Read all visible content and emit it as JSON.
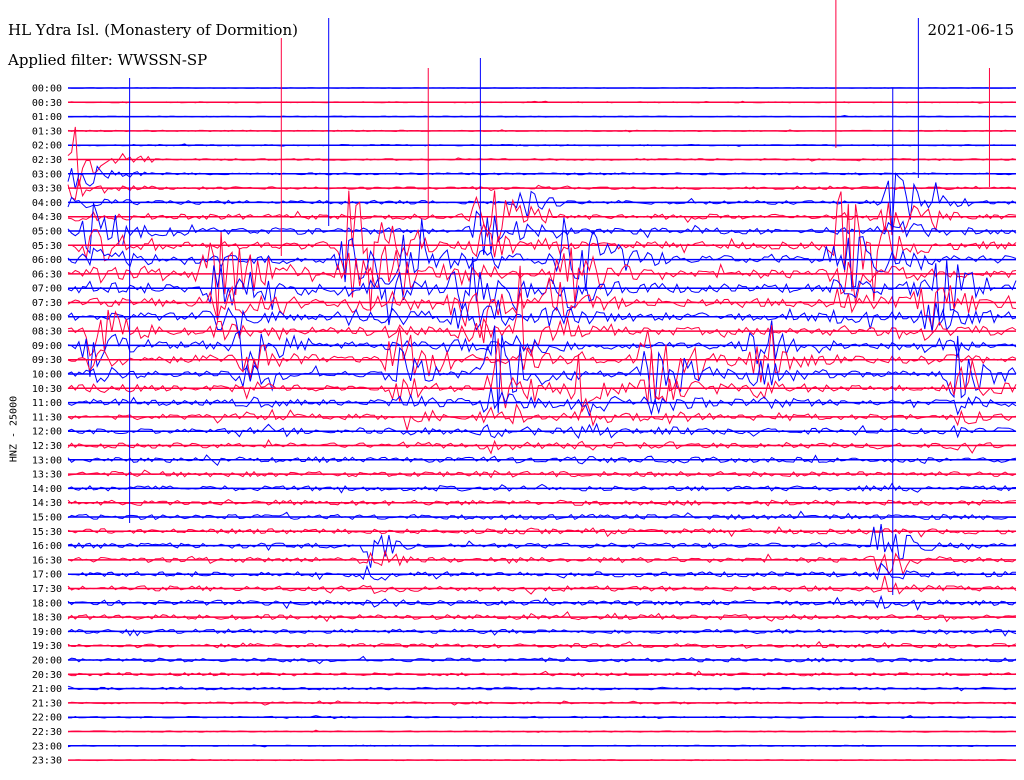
{
  "header": {
    "station": "HL Ydra Isl. (Monastery of Dormition)",
    "filter": "Applied filter: WWSSN-SP",
    "date": "2021-06-15"
  },
  "chart_data": {
    "type": "line",
    "title": "HL Ydra Isl. (Monastery of Dormition)",
    "subtitle": "Applied filter: WWSSN-SP",
    "date": "2021-06-15",
    "ylabel": "HNZ - 25000",
    "xlabel": "",
    "grid": false,
    "legend": "none",
    "colors": [
      "#0000ff",
      "#ff0040"
    ],
    "row_labels": [
      "00:00",
      "00:30",
      "01:00",
      "01:30",
      "02:00",
      "02:30",
      "03:00",
      "03:30",
      "04:00",
      "04:30",
      "05:00",
      "05:30",
      "06:00",
      "06:30",
      "07:00",
      "07:30",
      "08:00",
      "08:30",
      "09:00",
      "09:30",
      "10:00",
      "10:30",
      "11:00",
      "11:30",
      "12:00",
      "12:30",
      "13:00",
      "13:30",
      "14:00",
      "14:30",
      "15:00",
      "15:30",
      "16:00",
      "16:30",
      "17:00",
      "17:30",
      "18:00",
      "18:30",
      "19:00",
      "19:30",
      "20:00",
      "20:30",
      "21:00",
      "21:30",
      "22:00",
      "22:30",
      "23:00",
      "23:30"
    ],
    "row_noise": [
      0.3,
      0.5,
      0.5,
      0.6,
      0.7,
      0.9,
      1.0,
      1.4,
      2.0,
      2.6,
      3.2,
      3.8,
      4.2,
      4.4,
      4.4,
      4.2,
      4.0,
      3.8,
      3.6,
      3.4,
      3.2,
      3.0,
      2.9,
      2.8,
      2.7,
      2.6,
      2.6,
      2.6,
      2.6,
      2.6,
      2.6,
      2.6,
      2.6,
      2.6,
      2.6,
      2.6,
      2.6,
      2.5,
      2.3,
      2.1,
      1.9,
      1.6,
      1.3,
      1.0,
      0.8,
      0.6,
      0.5,
      0.5
    ],
    "events": [
      {
        "row": 5,
        "x": 0.01,
        "amp": 34,
        "dur": 0.08,
        "span": 4
      },
      {
        "row": 10,
        "x": 0.03,
        "amp": 28,
        "dur": 0.1,
        "span": 4
      },
      {
        "row": 12,
        "x": 0.34,
        "amp": 50,
        "dur": 0.1,
        "span": 6
      },
      {
        "row": 13,
        "x": 0.16,
        "amp": 58,
        "dur": 0.1,
        "span": 6
      },
      {
        "row": 11,
        "x": 0.3,
        "amp": 62,
        "dur": 0.09,
        "span": 6
      },
      {
        "row": 14,
        "x": 0.42,
        "amp": 40,
        "dur": 0.12,
        "span": 6
      },
      {
        "row": 9,
        "x": 0.44,
        "amp": 42,
        "dur": 0.08,
        "span": 4
      },
      {
        "row": 12,
        "x": 0.53,
        "amp": 50,
        "dur": 0.1,
        "span": 6
      },
      {
        "row": 11,
        "x": 0.82,
        "amp": 60,
        "dur": 0.09,
        "span": 6
      },
      {
        "row": 8,
        "x": 0.87,
        "amp": 36,
        "dur": 0.08,
        "span": 5
      },
      {
        "row": 14,
        "x": 0.91,
        "amp": 44,
        "dur": 0.1,
        "span": 6
      },
      {
        "row": 17,
        "x": 0.03,
        "amp": 36,
        "dur": 0.07,
        "span": 5
      },
      {
        "row": 18,
        "x": 0.19,
        "amp": 38,
        "dur": 0.08,
        "span": 6
      },
      {
        "row": 19,
        "x": 0.35,
        "amp": 42,
        "dur": 0.08,
        "span": 6
      },
      {
        "row": 20,
        "x": 0.45,
        "amp": 46,
        "dur": 0.09,
        "span": 7
      },
      {
        "row": 21,
        "x": 0.54,
        "amp": 34,
        "dur": 0.06,
        "span": 5
      },
      {
        "row": 17,
        "x": 0.48,
        "amp": 30,
        "dur": 0.07,
        "span": 4
      },
      {
        "row": 19,
        "x": 0.62,
        "amp": 52,
        "dur": 0.1,
        "span": 7
      },
      {
        "row": 18,
        "x": 0.73,
        "amp": 40,
        "dur": 0.08,
        "span": 6
      },
      {
        "row": 20,
        "x": 0.94,
        "amp": 36,
        "dur": 0.07,
        "span": 5
      },
      {
        "row": 15,
        "x": 0.51,
        "amp": 26,
        "dur": 0.06,
        "span": 4
      },
      {
        "row": 32,
        "x": 0.32,
        "amp": 28,
        "dur": 0.05,
        "span": 4
      },
      {
        "row": 32,
        "x": 0.86,
        "amp": 30,
        "dur": 0.06,
        "span": 4
      },
      {
        "row": 8,
        "x": 0.48,
        "amp": 18,
        "dur": 0.05,
        "span": 2
      }
    ],
    "spikes": [
      {
        "row": 0,
        "x": 0.065,
        "up": 10,
        "down": 1450,
        "color": "#0000ff"
      },
      {
        "row": 0,
        "x": 0.225,
        "up": 50,
        "down": 560,
        "color": "#ff0040"
      },
      {
        "row": 0,
        "x": 0.275,
        "up": 70,
        "down": 460,
        "color": "#0000ff"
      },
      {
        "row": 0,
        "x": 0.38,
        "up": 20,
        "down": 430,
        "color": "#ff0040"
      },
      {
        "row": 0,
        "x": 0.435,
        "up": 30,
        "down": 460,
        "color": "#0000ff"
      },
      {
        "row": 0,
        "x": 0.81,
        "up": 140,
        "down": 200,
        "color": "#ff0040"
      },
      {
        "row": 0,
        "x": 0.897,
        "up": 70,
        "down": 300,
        "color": "#0000ff"
      },
      {
        "row": 0,
        "x": 0.972,
        "up": 20,
        "down": 330,
        "color": "#ff0040"
      },
      {
        "row": 0,
        "x": 0.87,
        "up": 0,
        "down": 1690,
        "color": "#0000ff"
      }
    ]
  },
  "layout_colors": {
    "blue": "#0000ff",
    "red": "#ff0040",
    "text": "#000000"
  }
}
